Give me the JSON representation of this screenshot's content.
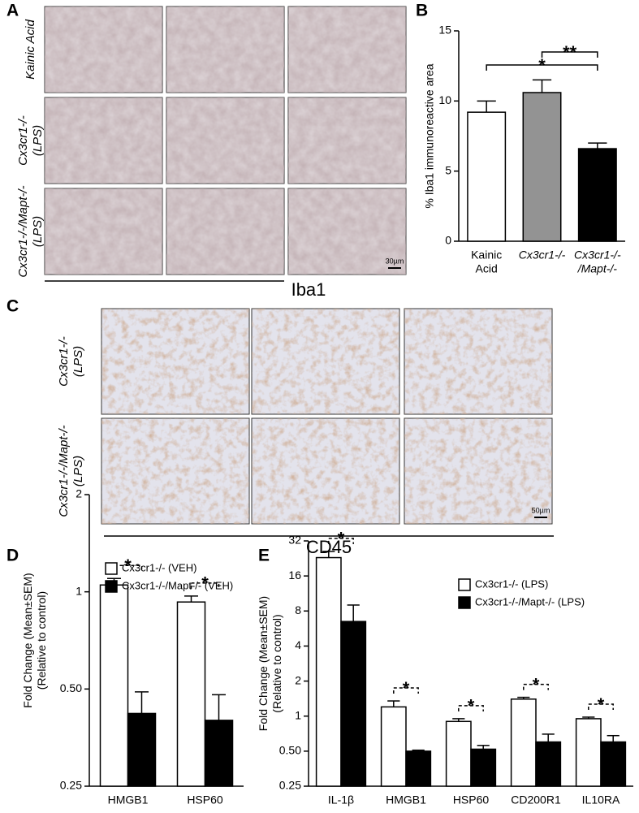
{
  "panel_a": {
    "letter": "A",
    "rows": [
      [
        "Kainic Acid"
      ],
      [
        "Cx3cr1-/-",
        "(LPS)"
      ],
      [
        "Cx3cr1-/-/Mapt-/-",
        "(LPS)"
      ]
    ],
    "stain": "Iba1",
    "scale_bar": "30µm"
  },
  "panel_b": {
    "letter": "B"
  },
  "panel_c": {
    "letter": "C",
    "rows": [
      [
        "Cx3cr1-/-",
        "(LPS)"
      ],
      [
        "Cx3cr1-/-/Mapt-/-",
        "(LPS)"
      ]
    ],
    "stain": "CD45",
    "scale_bar": "50µm"
  },
  "panel_d": {
    "letter": "D"
  },
  "panel_e": {
    "letter": "E"
  },
  "chart_data": [
    {
      "type": "bar",
      "ylabel": [
        "% Iba1 immunoreactive area"
      ],
      "categories": [
        [
          "Kainic",
          "Acid"
        ],
        [
          "Cx3cr1-/-"
        ],
        [
          "Cx3cr1-/-",
          "/Mapt-/-"
        ]
      ],
      "values": [
        9.2,
        10.6,
        6.6
      ],
      "errors": [
        0.8,
        0.9,
        0.4
      ],
      "colors": [
        "#ffffff",
        "#939393",
        "#000000"
      ],
      "ylim": [
        0,
        15
      ],
      "yticks": [
        0,
        5,
        10,
        15
      ],
      "annotations": [
        "*",
        "**"
      ]
    },
    {
      "type": "grouped_bar",
      "log_scale": true,
      "ylabel": [
        "Fold Change (Mean±SEM)",
        "(Relative to control)"
      ],
      "categories": [
        "HMGB1",
        "HSP60"
      ],
      "series": [
        {
          "name": "Cx3cr1-/- (VEH)",
          "color": "#ffffff",
          "values": [
            1.05,
            0.93
          ],
          "errors": [
            0.05,
            0.04
          ]
        },
        {
          "name": "Cx3cr1-/-/Mapt-/- (VEH)",
          "color": "#000000",
          "values": [
            0.42,
            0.4
          ],
          "errors": [
            0.07,
            0.08
          ]
        }
      ],
      "ylim": [
        0.25,
        2
      ],
      "yticks": [
        0.25,
        {
          "value": 0.5,
          "label": "0.50"
        },
        1,
        2
      ],
      "annotations": [
        "*",
        "*"
      ]
    },
    {
      "type": "grouped_bar",
      "log_scale": true,
      "ylabel": [
        "Fold Change (Mean±SEM)",
        "(Relative to control)"
      ],
      "categories": [
        "IL-1β",
        "HMGB1",
        "HSP60",
        "CD200R1",
        "IL10RA"
      ],
      "series": [
        {
          "name": "Cx3cr1-/- (LPS)",
          "color": "#ffffff",
          "values": [
            23,
            1.2,
            0.9,
            1.4,
            0.95
          ],
          "errors": [
            3,
            0.15,
            0.05,
            0.05,
            0.03
          ]
        },
        {
          "name": "Cx3cr1-/-/Mapt-/- (LPS)",
          "color": "#000000",
          "values": [
            6.5,
            0.5,
            0.52,
            0.6,
            0.6
          ],
          "errors": [
            2.5,
            0.01,
            0.04,
            0.1,
            0.08
          ]
        }
      ],
      "ylim": [
        0.25,
        32
      ],
      "yticks": [
        0.25,
        {
          "value": 0.5,
          "label": "0.50"
        },
        1,
        2,
        4,
        8,
        16,
        32
      ],
      "annotations": [
        "*",
        "*",
        "*",
        "*",
        "*"
      ]
    }
  ]
}
